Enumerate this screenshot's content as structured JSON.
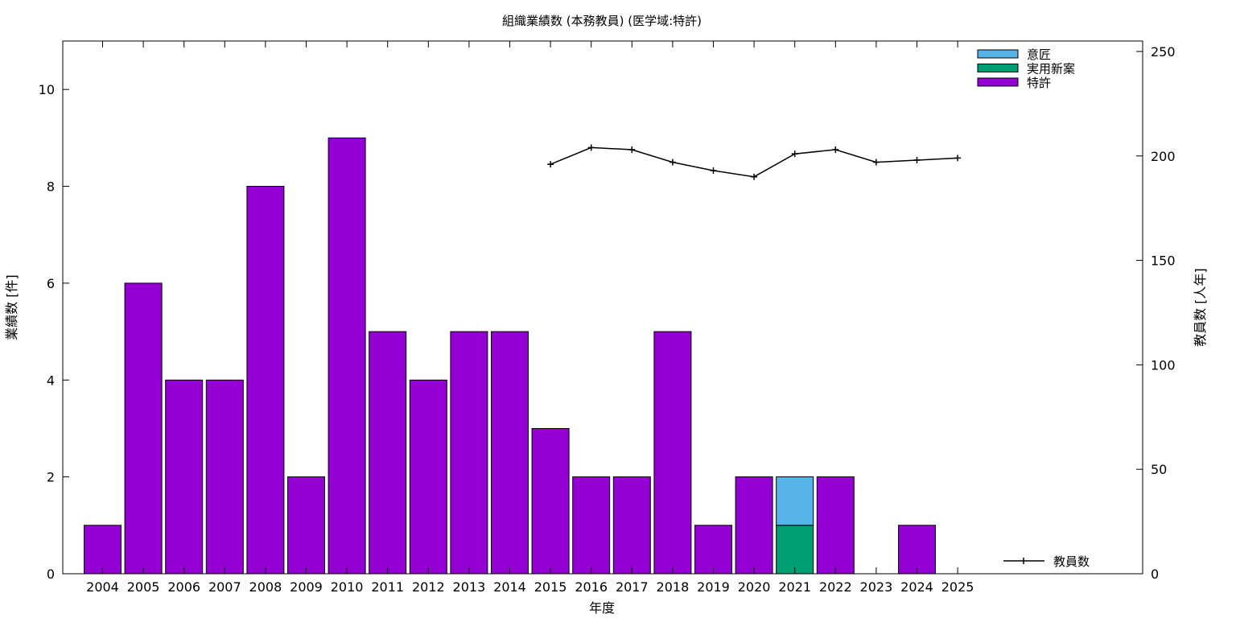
{
  "chart_data": {
    "type": "bar",
    "stacked": true,
    "title": "組織業績数 (本務教員) (医学域:特許)",
    "xlabel": "年度",
    "ylabel": "業績数 [件]",
    "y2label": "教員数 [人年]",
    "ylim": [
      0,
      11
    ],
    "y2lim": [
      0,
      255
    ],
    "yticks": [
      0,
      2,
      4,
      6,
      8,
      10
    ],
    "y2ticks": [
      0,
      50,
      100,
      150,
      200,
      250
    ],
    "categories": [
      "2004",
      "2005",
      "2006",
      "2007",
      "2008",
      "2009",
      "2010",
      "2011",
      "2012",
      "2013",
      "2014",
      "2015",
      "2016",
      "2017",
      "2018",
      "2019",
      "2020",
      "2021",
      "2022",
      "2023",
      "2024",
      "2025"
    ],
    "series": [
      {
        "name": "特許",
        "color": "#9400d3",
        "values": [
          1,
          6,
          4,
          4,
          8,
          2,
          9,
          5,
          4,
          5,
          5,
          3,
          2,
          2,
          5,
          1,
          2,
          0,
          2,
          0,
          1,
          0
        ]
      },
      {
        "name": "実用新案",
        "color": "#009e73",
        "values": [
          0,
          0,
          0,
          0,
          0,
          0,
          0,
          0,
          0,
          0,
          0,
          0,
          0,
          0,
          0,
          0,
          0,
          1,
          0,
          0,
          0,
          0
        ]
      },
      {
        "name": "意匠",
        "color": "#56b4e9",
        "values": [
          0,
          0,
          0,
          0,
          0,
          0,
          0,
          0,
          0,
          0,
          0,
          0,
          0,
          0,
          0,
          0,
          0,
          1,
          0,
          0,
          0,
          0
        ]
      }
    ],
    "line_series": {
      "name": "教員数",
      "axis": "y2",
      "color": "#000000",
      "values": [
        null,
        null,
        null,
        null,
        null,
        null,
        null,
        null,
        null,
        null,
        null,
        196,
        204,
        203,
        197,
        193,
        190,
        201,
        203,
        197,
        198,
        199
      ]
    },
    "legend_placement": "top-right",
    "line_legend_placement": "bottom-right",
    "grid": false
  }
}
